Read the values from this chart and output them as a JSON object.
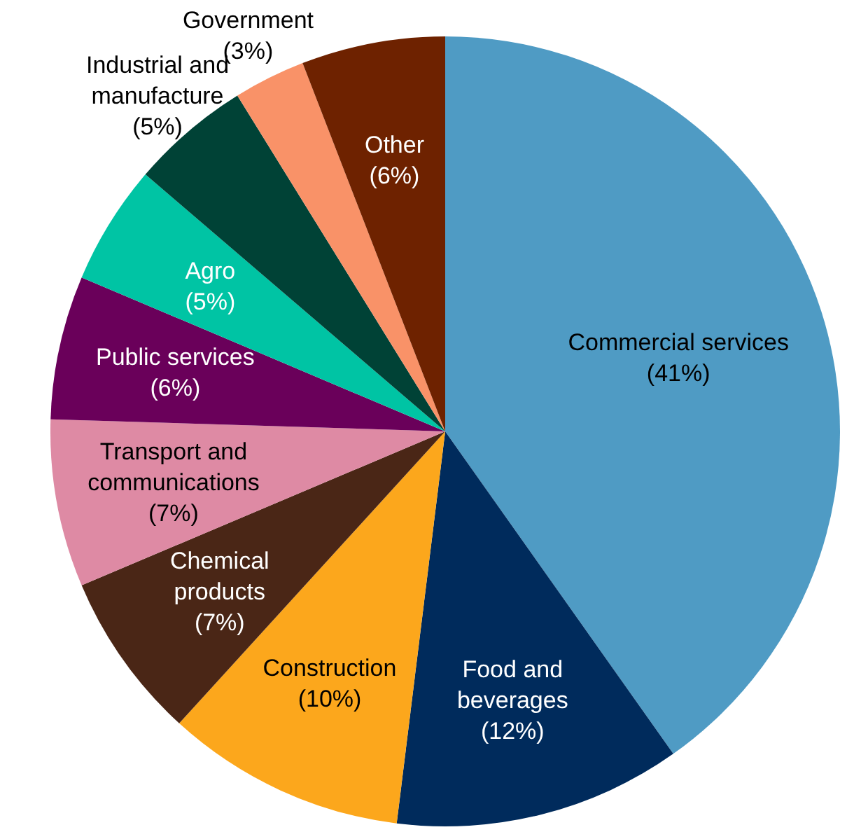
{
  "chart_data": {
    "type": "pie",
    "categories": [
      "Commercial services",
      "Food and beverages",
      "Construction",
      "Chemical products",
      "Transport and communications",
      "Public services",
      "Agro",
      "Industrial and manufacture",
      "Government",
      "Other"
    ],
    "values": [
      41,
      12,
      10,
      7,
      7,
      6,
      5,
      5,
      3,
      6
    ],
    "value_labels": [
      "(41%)",
      "(12%)",
      "(10%)",
      "(7%)",
      "(7%)",
      "(6%)",
      "(5%)",
      "(5%)",
      "(3%)",
      "(6%)"
    ],
    "colors": [
      "#4f9bc4",
      "#002b5c",
      "#fca71c",
      "#4a2616",
      "#de8aa4",
      "#6a005a",
      "#00c4a4",
      "#004236",
      "#f99268",
      "#6e2200"
    ]
  }
}
